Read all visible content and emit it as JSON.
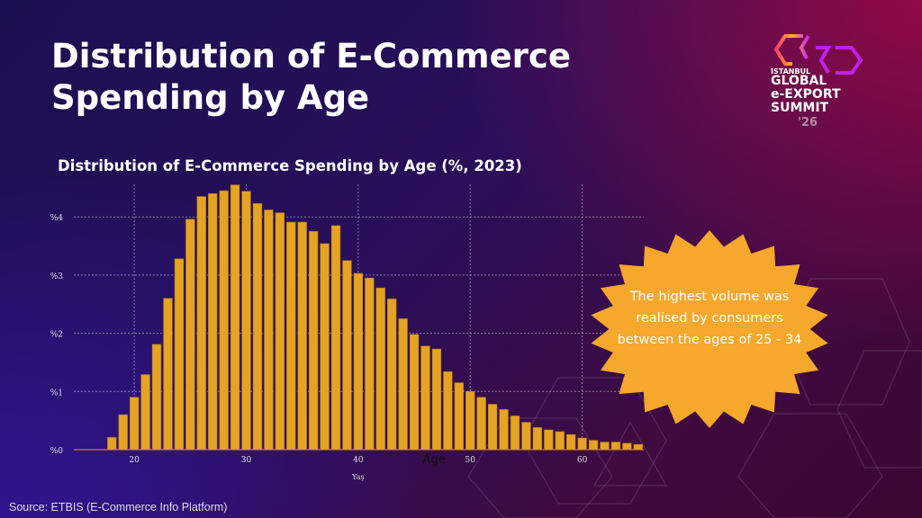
{
  "slide": {
    "title_line1": "Distribution of E-Commerce",
    "title_line2": "Spending by Age",
    "source": "Source: ETBIS (E-Commerce Info Platform)",
    "callout": "The highest volume was realised by consumers between the ages of 25 - 34",
    "logo": {
      "line1": "ISTANBUL",
      "line2": "GLOBAL",
      "line3": "e-EXPORT",
      "line4": "SUMMIT",
      "line5": "'26"
    }
  },
  "colors": {
    "bar": "#E5A323",
    "callout": "#F5A82C",
    "background_left": "#2a1290",
    "background_right": "#8a0a40"
  },
  "chart_data": {
    "type": "bar",
    "title": "Distribution of E-Commerce Spending by Age (%, 2023)",
    "xlabel": "Yaş",
    "xlabel_overlay": "Age",
    "ylabel": "",
    "x": [
      18,
      19,
      20,
      21,
      22,
      23,
      24,
      25,
      26,
      27,
      28,
      29,
      30,
      31,
      32,
      33,
      34,
      35,
      36,
      37,
      38,
      39,
      40,
      41,
      42,
      43,
      44,
      45,
      46,
      47,
      48,
      49,
      50,
      51,
      52,
      53,
      54,
      55,
      56,
      57,
      58,
      59,
      60,
      61,
      62,
      63,
      64,
      65
    ],
    "values": [
      0.21,
      0.6,
      0.9,
      1.29,
      1.81,
      2.6,
      3.28,
      3.96,
      4.35,
      4.4,
      4.45,
      4.55,
      4.44,
      4.23,
      4.12,
      4.07,
      3.91,
      3.91,
      3.75,
      3.54,
      3.85,
      3.25,
      3.03,
      2.95,
      2.78,
      2.59,
      2.25,
      1.98,
      1.78,
      1.73,
      1.34,
      1.15,
      1.0,
      0.9,
      0.78,
      0.69,
      0.58,
      0.47,
      0.38,
      0.34,
      0.31,
      0.26,
      0.2,
      0.16,
      0.13,
      0.13,
      0.11,
      0.09
    ],
    "xticks": [
      20,
      30,
      40,
      50,
      60
    ],
    "xtick_labels": [
      "20",
      "30",
      "40",
      "50",
      "60"
    ],
    "yticks": [
      0,
      1,
      2,
      3,
      4
    ],
    "ytick_labels": [
      "%0",
      "%1",
      "%2",
      "%3",
      "%4"
    ],
    "xlim": [
      14.6,
      65.5
    ],
    "ylim": [
      0,
      4.6
    ],
    "grid": true,
    "unit": "%"
  }
}
